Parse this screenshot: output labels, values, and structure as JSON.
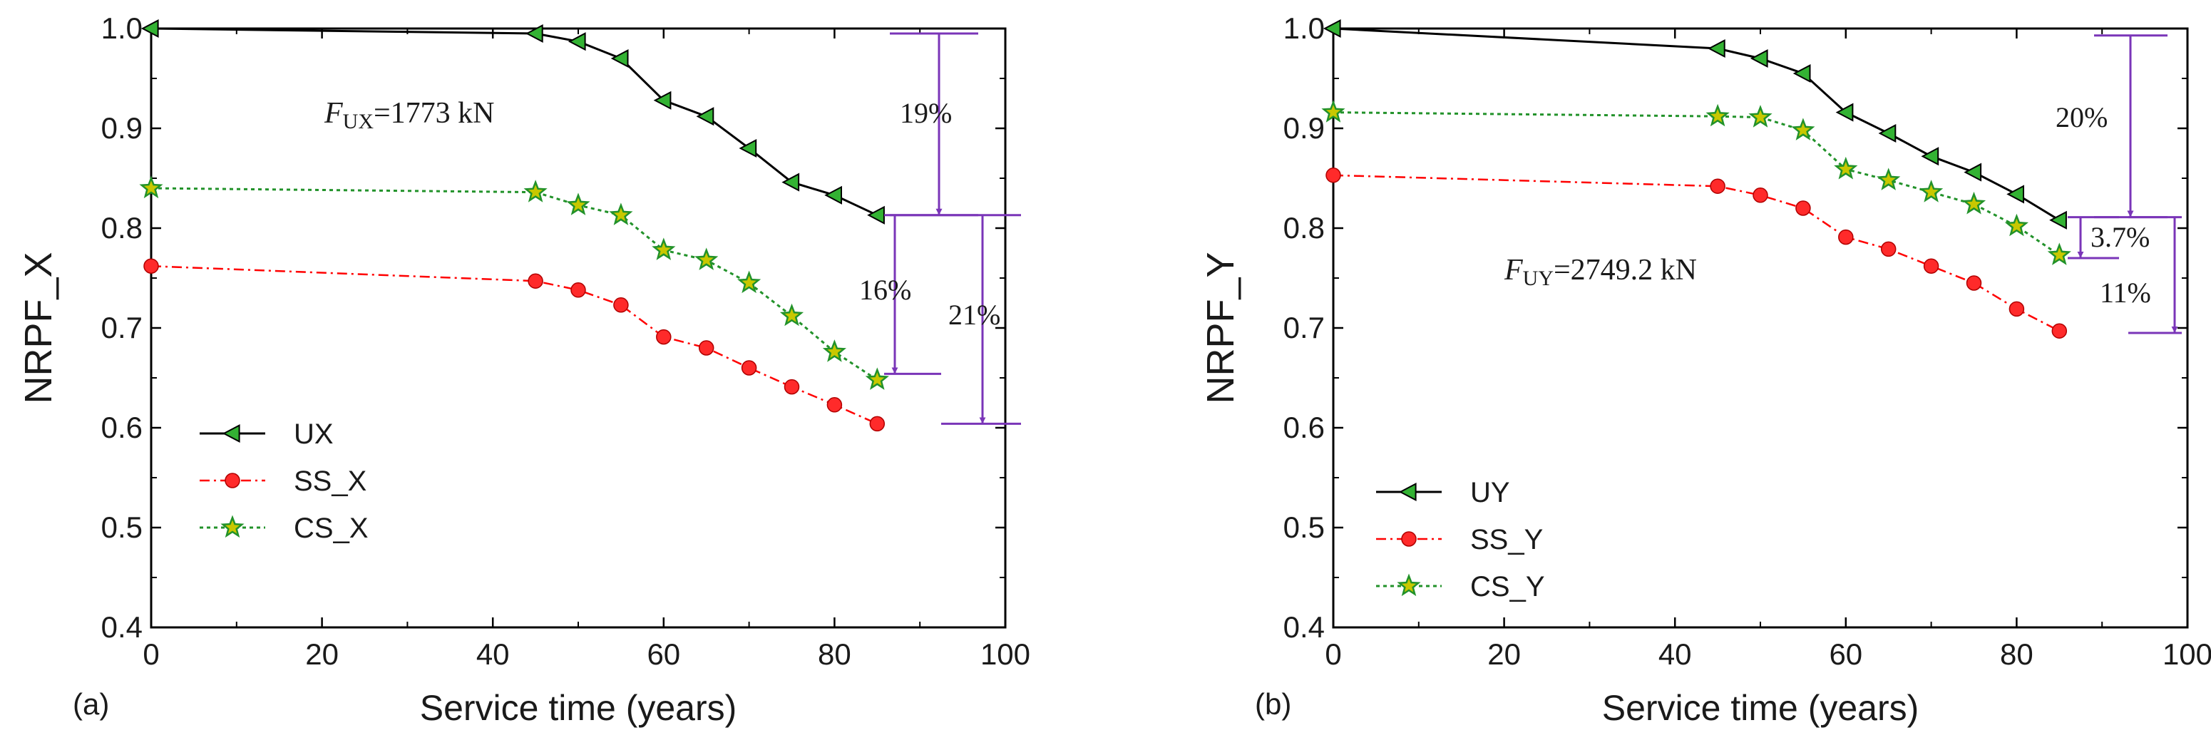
{
  "colors": {
    "ux_line": "#000000",
    "marker_green": "#33b233",
    "ss_line": "#ff0000",
    "marker_red": "#ff2a2a",
    "cs_line": "#22922a",
    "star_fill": "#c8c800",
    "annotation": "#7a35b8"
  },
  "chart_data": [
    {
      "type": "line",
      "panel_label": "(a)",
      "xlabel": "Service time (years)",
      "ylabel": "NRPF_X",
      "xlim": [
        0,
        100
      ],
      "ylim": [
        0.4,
        1.0
      ],
      "xticks": [
        0,
        20,
        40,
        60,
        80,
        100
      ],
      "yticks": [
        0.4,
        0.5,
        0.6,
        0.7,
        0.8,
        0.9,
        1.0
      ],
      "xtick_labels": [
        "0",
        "20",
        "40",
        "60",
        "80",
        "100"
      ],
      "ytick_labels": [
        "0.4",
        "0.5",
        "0.6",
        "0.7",
        "0.8",
        "0.9",
        "1.0"
      ],
      "x": [
        0,
        45,
        50,
        55,
        60,
        65,
        70,
        75,
        80,
        85
      ],
      "series": [
        {
          "name": "UX",
          "style": "solid",
          "marker": "left-triangle",
          "values": [
            1.0,
            0.995,
            0.987,
            0.97,
            0.928,
            0.912,
            0.88,
            0.846,
            0.833,
            0.813
          ]
        },
        {
          "name": "SS_X",
          "style": "dashdot",
          "marker": "circle",
          "values": [
            0.762,
            0.747,
            0.738,
            0.723,
            0.691,
            0.68,
            0.66,
            0.641,
            0.623,
            0.604
          ]
        },
        {
          "name": "CS_X",
          "style": "dotted",
          "marker": "star",
          "values": [
            0.84,
            0.836,
            0.823,
            0.813,
            0.778,
            0.768,
            0.745,
            0.712,
            0.676,
            0.648
          ]
        }
      ],
      "legend_position": "bottom-left",
      "force_text": {
        "symbol": "F",
        "subscript": "UX",
        "value": "=1773  kN"
      },
      "annotations": [
        {
          "text": "19%",
          "top": 0.995,
          "bottom": 0.813
        },
        {
          "text": "16%",
          "top": 0.813,
          "bottom": 0.654
        },
        {
          "text": "21%",
          "top": 0.813,
          "bottom": 0.604
        }
      ]
    },
    {
      "type": "line",
      "panel_label": "(b)",
      "xlabel": "Service time (years)",
      "ylabel": "NRPF_Y",
      "xlim": [
        0,
        100
      ],
      "ylim": [
        0.4,
        1.0
      ],
      "xticks": [
        0,
        20,
        40,
        60,
        80,
        100
      ],
      "yticks": [
        0.4,
        0.5,
        0.6,
        0.7,
        0.8,
        0.9,
        1.0
      ],
      "xtick_labels": [
        "0",
        "20",
        "40",
        "60",
        "80",
        "100"
      ],
      "ytick_labels": [
        "0.4",
        "0.5",
        "0.6",
        "0.7",
        "0.8",
        "0.9",
        "1.0"
      ],
      "x": [
        0,
        45,
        50,
        55,
        60,
        65,
        70,
        75,
        80,
        85
      ],
      "series": [
        {
          "name": "UY",
          "style": "solid",
          "marker": "left-triangle",
          "values": [
            1.0,
            0.98,
            0.97,
            0.955,
            0.916,
            0.895,
            0.872,
            0.856,
            0.834,
            0.808
          ]
        },
        {
          "name": "SS_Y",
          "style": "dashdot",
          "marker": "circle",
          "values": [
            0.853,
            0.842,
            0.833,
            0.82,
            0.791,
            0.779,
            0.762,
            0.745,
            0.719,
            0.697
          ]
        },
        {
          "name": "CS_Y",
          "style": "dotted",
          "marker": "star",
          "values": [
            0.916,
            0.912,
            0.911,
            0.898,
            0.859,
            0.848,
            0.836,
            0.824,
            0.802,
            0.773
          ]
        }
      ],
      "legend_position": "bottom-left",
      "force_text": {
        "symbol": "F",
        "subscript": "UY",
        "value": "=2749.2  kN"
      },
      "annotations": [
        {
          "text": "20%",
          "top": 0.993,
          "bottom": 0.811
        },
        {
          "text": "3.7%",
          "top": 0.811,
          "bottom": 0.77
        },
        {
          "text": "11%",
          "top": 0.811,
          "bottom": 0.695
        }
      ]
    }
  ]
}
